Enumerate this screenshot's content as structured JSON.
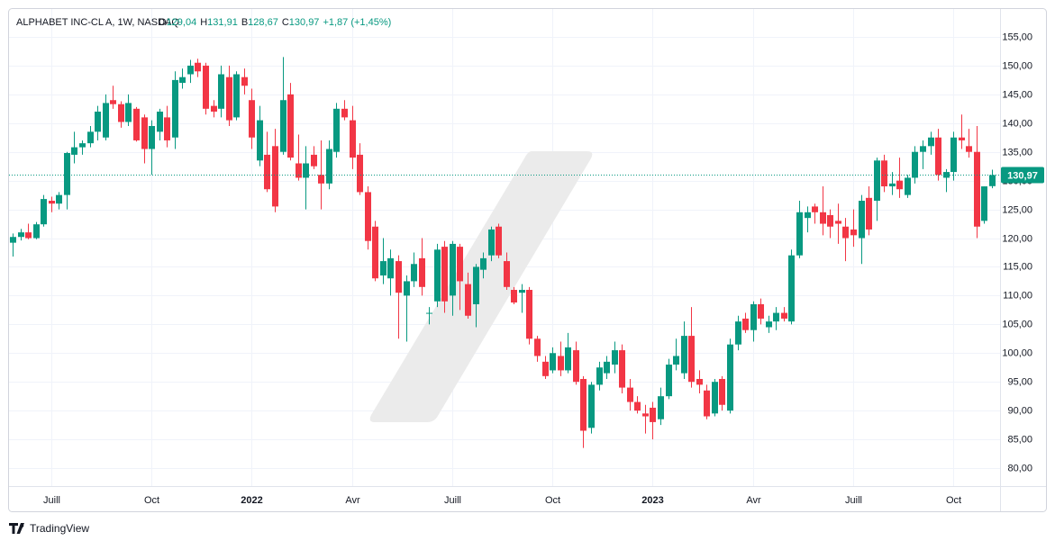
{
  "header": {
    "title": "ALPHABET INC-CL A, 1W, NASDAQ",
    "items": [
      {
        "key": "O",
        "value": "129,04"
      },
      {
        "key": "H",
        "value": "131,91"
      },
      {
        "key": "B",
        "value": "128,67"
      },
      {
        "key": "C",
        "value": "130,97"
      }
    ],
    "change": "+1,87 (+1,45%)"
  },
  "footer": {
    "brand": "TradingView"
  },
  "chart_data": {
    "type": "candlestick",
    "up_color": "#089981",
    "down_color": "#f23645",
    "grid": true,
    "xlim": [
      -0.47,
      128.05
    ],
    "ylim": [
      76.87,
      159.85
    ],
    "xticks": [
      {
        "value": 5,
        "label": "Juill"
      },
      {
        "value": 18,
        "label": "Oct"
      },
      {
        "value": 31,
        "label": "2022"
      },
      {
        "value": 44,
        "label": "Avr"
      },
      {
        "value": 57,
        "label": "Juill"
      },
      {
        "value": 70,
        "label": "Oct"
      },
      {
        "value": 83,
        "label": "2023"
      },
      {
        "value": 96,
        "label": "Avr"
      },
      {
        "value": 109,
        "label": "Juill"
      },
      {
        "value": 122,
        "label": "Oct"
      }
    ],
    "yticks": [
      {
        "value": 80,
        "label": "80,00"
      },
      {
        "value": 85,
        "label": "85,00"
      },
      {
        "value": 90,
        "label": "90,00"
      },
      {
        "value": 95,
        "label": "95,00"
      },
      {
        "value": 100,
        "label": "100,00"
      },
      {
        "value": 105,
        "label": "105,00"
      },
      {
        "value": 110,
        "label": "110,00"
      },
      {
        "value": 115,
        "label": "115,00"
      },
      {
        "value": 120,
        "label": "120,00"
      },
      {
        "value": 125,
        "label": "125,00"
      },
      {
        "value": 130,
        "label": "130,00"
      },
      {
        "value": 135,
        "label": "135,00"
      },
      {
        "value": 140,
        "label": "140,00"
      },
      {
        "value": 145,
        "label": "145,00"
      },
      {
        "value": 150,
        "label": "150,00"
      },
      {
        "value": 155,
        "label": "155,00"
      }
    ],
    "last_price": {
      "value": 130.97,
      "label": "130,97"
    },
    "ohlc": [
      [
        119.2,
        120.8,
        116.8,
        120.2
      ],
      [
        120.2,
        121.6,
        119.6,
        121.0
      ],
      [
        121.0,
        122.5,
        119.8,
        120.0
      ],
      [
        120.0,
        122.8,
        119.8,
        122.4
      ],
      [
        122.4,
        127.5,
        122.0,
        126.8
      ],
      [
        126.5,
        127.2,
        124.5,
        126.0
      ],
      [
        126.0,
        128.0,
        125.0,
        127.5
      ],
      [
        127.5,
        135.0,
        125.0,
        134.8
      ],
      [
        134.5,
        138.5,
        133.0,
        135.8
      ],
      [
        135.8,
        137.0,
        134.5,
        136.5
      ],
      [
        136.5,
        139.5,
        135.8,
        138.5
      ],
      [
        138.5,
        143.0,
        137.0,
        142.0
      ],
      [
        137.5,
        145.0,
        137.0,
        143.5
      ],
      [
        144.0,
        146.5,
        142.5,
        143.3
      ],
      [
        143.3,
        143.8,
        139.2,
        140.2
      ],
      [
        140.2,
        145.0,
        139.5,
        143.5
      ],
      [
        142.5,
        142.8,
        136.8,
        137.0
      ],
      [
        141.0,
        141.5,
        133.0,
        135.5
      ],
      [
        135.5,
        140.5,
        131.0,
        139.5
      ],
      [
        138.5,
        142.5,
        137.0,
        142.0
      ],
      [
        141.0,
        143.0,
        135.8,
        137.0
      ],
      [
        137.5,
        149.0,
        135.5,
        147.5
      ],
      [
        147.0,
        149.5,
        146.0,
        148.0
      ],
      [
        148.5,
        151.0,
        147.0,
        150.0
      ],
      [
        150.5,
        151.2,
        148.0,
        149.0
      ],
      [
        150.0,
        150.5,
        141.5,
        142.5
      ],
      [
        143.0,
        144.0,
        141.0,
        142.0
      ],
      [
        142.5,
        150.0,
        141.0,
        148.5
      ],
      [
        148.0,
        150.0,
        139.5,
        140.5
      ],
      [
        141.0,
        149.0,
        140.5,
        148.5
      ],
      [
        148.0,
        149.5,
        145.0,
        146.5
      ],
      [
        144.0,
        146.0,
        135.5,
        137.5
      ],
      [
        133.5,
        143.0,
        132.5,
        140.5
      ],
      [
        134.5,
        138.5,
        128.0,
        128.5
      ],
      [
        136.0,
        139.0,
        124.5,
        125.5
      ],
      [
        135.0,
        151.5,
        134.5,
        144.0
      ],
      [
        145.0,
        147.0,
        133.5,
        134.0
      ],
      [
        133.0,
        138.0,
        130.0,
        130.5
      ],
      [
        130.5,
        136.0,
        125.0,
        133.0
      ],
      [
        134.5,
        136.0,
        132.0,
        132.5
      ],
      [
        131.0,
        137.0,
        125.0,
        129.5
      ],
      [
        129.5,
        137.0,
        128.5,
        135.5
      ],
      [
        135.0,
        143.5,
        134.0,
        142.5
      ],
      [
        142.5,
        144.0,
        140.5,
        141.0
      ],
      [
        140.5,
        143.0,
        132.0,
        134.0
      ],
      [
        134.5,
        136.5,
        127.5,
        128.0
      ],
      [
        128.0,
        129.0,
        118.0,
        119.5
      ],
      [
        122.0,
        123.0,
        112.5,
        113.0
      ],
      [
        113.5,
        120.0,
        112.0,
        116.0
      ],
      [
        113.0,
        118.0,
        110.0,
        116.5
      ],
      [
        116.0,
        117.0,
        102.5,
        110.5
      ],
      [
        110.0,
        113.5,
        102.0,
        112.5
      ],
      [
        112.5,
        117.5,
        111.5,
        115.5
      ],
      [
        116.5,
        120.0,
        110.0,
        111.5
      ],
      [
        107.0,
        108.0,
        105.0,
        107.0
      ],
      [
        109.0,
        119.0,
        108.0,
        118.0
      ],
      [
        118.5,
        119.5,
        107.0,
        109.0
      ],
      [
        110.0,
        119.5,
        106.5,
        119.0
      ],
      [
        118.5,
        119.0,
        107.5,
        112.5
      ],
      [
        112.0,
        114.0,
        106.0,
        106.5
      ],
      [
        108.5,
        115.5,
        104.5,
        115.0
      ],
      [
        114.5,
        117.5,
        113.0,
        116.5
      ],
      [
        117.0,
        122.0,
        116.0,
        121.5
      ],
      [
        122.0,
        122.5,
        116.5,
        117.0
      ],
      [
        116.0,
        117.5,
        111.0,
        111.5
      ],
      [
        111.0,
        111.5,
        108.5,
        108.8
      ],
      [
        110.5,
        112.0,
        107.0,
        111.0
      ],
      [
        111.0,
        111.5,
        101.5,
        102.5
      ],
      [
        102.5,
        103.0,
        98.5,
        99.5
      ],
      [
        98.5,
        99.5,
        95.5,
        96.0
      ],
      [
        97.0,
        101.0,
        96.5,
        100.0
      ],
      [
        99.5,
        102.0,
        96.0,
        97.0
      ],
      [
        97.0,
        103.5,
        96.5,
        101.0
      ],
      [
        100.5,
        102.0,
        94.5,
        95.0
      ],
      [
        95.5,
        96.0,
        83.5,
        86.5
      ],
      [
        87.0,
        95.0,
        86.0,
        94.5
      ],
      [
        94.5,
        98.5,
        93.5,
        97.5
      ],
      [
        96.5,
        99.5,
        95.5,
        98.5
      ],
      [
        98.0,
        102.0,
        96.5,
        100.5
      ],
      [
        100.5,
        101.5,
        93.0,
        94.0
      ],
      [
        94.0,
        95.5,
        90.0,
        91.5
      ],
      [
        91.5,
        92.5,
        89.5,
        90.0
      ],
      [
        89.5,
        91.0,
        86.0,
        89.0
      ],
      [
        90.5,
        91.5,
        85.0,
        88.0
      ],
      [
        88.5,
        94.0,
        87.5,
        92.5
      ],
      [
        92.5,
        99.0,
        92.0,
        98.0
      ],
      [
        98.0,
        102.5,
        97.0,
        99.5
      ],
      [
        96.5,
        105.5,
        95.5,
        103.0
      ],
      [
        103.0,
        108.0,
        94.0,
        95.0
      ],
      [
        95.5,
        97.0,
        93.0,
        94.5
      ],
      [
        93.5,
        94.5,
        88.5,
        89.0
      ],
      [
        89.5,
        95.5,
        89.0,
        95.0
      ],
      [
        95.5,
        96.0,
        90.0,
        91.0
      ],
      [
        90.0,
        102.5,
        89.5,
        101.5
      ],
      [
        101.5,
        106.5,
        100.5,
        105.5
      ],
      [
        106.0,
        107.0,
        103.5,
        104.0
      ],
      [
        104.0,
        109.0,
        102.0,
        108.5
      ],
      [
        108.5,
        109.5,
        105.0,
        106.0
      ],
      [
        104.5,
        106.5,
        103.5,
        105.5
      ],
      [
        105.5,
        108.0,
        104.0,
        107.0
      ],
      [
        107.0,
        108.0,
        105.5,
        106.0
      ],
      [
        105.5,
        118.0,
        105.0,
        117.0
      ],
      [
        117.0,
        126.5,
        116.5,
        124.5
      ],
      [
        123.5,
        125.5,
        121.0,
        124.5
      ],
      [
        125.5,
        126.0,
        122.5,
        124.5
      ],
      [
        124.5,
        129.0,
        120.5,
        122.5
      ],
      [
        124.0,
        125.0,
        120.0,
        122.0
      ],
      [
        123.0,
        126.0,
        119.0,
        122.5
      ],
      [
        122.0,
        123.5,
        116.0,
        120.0
      ],
      [
        121.5,
        125.0,
        118.5,
        120.5
      ],
      [
        120.0,
        127.5,
        115.5,
        126.5
      ],
      [
        127.0,
        129.0,
        120.5,
        121.5
      ],
      [
        126.5,
        134.0,
        123.0,
        133.5
      ],
      [
        133.5,
        134.5,
        128.0,
        129.0
      ],
      [
        129.0,
        131.5,
        127.5,
        129.5
      ],
      [
        130.0,
        134.0,
        127.0,
        128.5
      ],
      [
        127.5,
        131.0,
        127.0,
        130.5
      ],
      [
        130.5,
        136.0,
        129.5,
        135.0
      ],
      [
        135.0,
        137.0,
        132.0,
        136.0
      ],
      [
        136.0,
        138.5,
        134.5,
        137.5
      ],
      [
        137.5,
        139.0,
        130.0,
        131.0
      ],
      [
        130.5,
        132.0,
        128.0,
        131.5
      ],
      [
        131.5,
        138.5,
        130.0,
        137.5
      ],
      [
        137.5,
        141.5,
        135.5,
        137.0
      ],
      [
        136.0,
        139.0,
        134.0,
        135.0
      ],
      [
        135.0,
        139.5,
        120.0,
        122.0
      ],
      [
        123.0,
        129.0,
        122.5,
        129.0
      ],
      [
        129.04,
        131.91,
        128.67,
        130.97
      ]
    ]
  }
}
